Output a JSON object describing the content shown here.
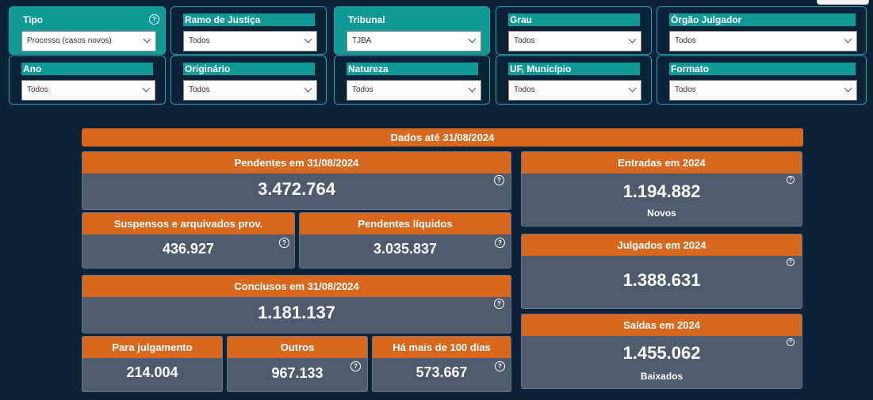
{
  "filters": [
    {
      "label": "Tipo",
      "value": "Processo (casos novos)"
    },
    {
      "label": "Ramo de Justiça",
      "value": "Todos"
    },
    {
      "label": "Tribunal",
      "value": "TJBA"
    },
    {
      "label": "Grau",
      "value": "Todos"
    },
    {
      "label": "Órgão Julgador",
      "value": "Todos"
    },
    {
      "label": "Ano",
      "value": "Todos"
    },
    {
      "label": "Originário",
      "value": "Todos"
    },
    {
      "label": "Natureza",
      "value": "Todos"
    },
    {
      "label": "UF, Município",
      "value": "Todos"
    },
    {
      "label": "Formato",
      "value": "Todos"
    }
  ],
  "help_glyph": "?",
  "banner": "Dados até 31/08/2024",
  "cards": {
    "pendentes": {
      "title": "Pendentes em 31/08/2024",
      "value": "3.472.764"
    },
    "suspensos": {
      "title": "Suspensos e arquivados prov.",
      "value": "436.927"
    },
    "liquidos": {
      "title": "Pendentes líquidos",
      "value": "3.035.837"
    },
    "conclusos": {
      "title": "Conclusos em 31/08/2024",
      "value": "1.181.137"
    },
    "para_julgamento": {
      "title": "Para julgamento",
      "value": "214.004"
    },
    "outros": {
      "title": "Outros",
      "value": "967.133"
    },
    "mais_100": {
      "title": "Há mais de 100 dias",
      "value": "573.667"
    },
    "entradas": {
      "title": "Entradas em 2024",
      "value": "1.194.882",
      "sub": "Novos"
    },
    "julgados": {
      "title": "Julgados em 2024",
      "value": "1.388.631"
    },
    "saidas": {
      "title": "Saídas em 2024",
      "value": "1.455.062",
      "sub": "Baixados"
    }
  },
  "colors": {
    "background": "#0b2239",
    "accent_teal": "#0f9a96",
    "card_orange": "#d9681f",
    "card_body": "#4f5b6d"
  }
}
